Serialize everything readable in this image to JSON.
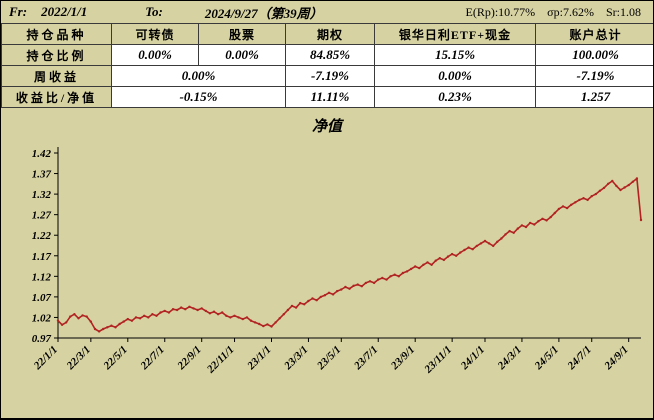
{
  "page": {
    "bg": "#d6d2a2"
  },
  "header_bar": {
    "fr_label": "Fr:",
    "fr_value": "2022/1/1",
    "to_label": "To:",
    "to_value": "2024/9/27（第39周）",
    "stats": [
      "E(Rp):10.77%",
      "σp:7.62%",
      "Sr:1.08"
    ]
  },
  "table": {
    "rows": [
      {
        "label": "持仓品种",
        "cells": [
          "可转债",
          "股票",
          "期权",
          "银华日利ETF+现金",
          "账户总计"
        ]
      },
      {
        "label": "持仓比例",
        "cells": [
          "0.00%",
          "0.00%",
          "84.85%",
          "15.15%",
          "100.00%"
        ]
      },
      {
        "label": "周收益",
        "merged": "0.00%",
        "cells": [
          "-7.19%",
          "0.00%",
          "-7.19%"
        ]
      },
      {
        "label": "收益比/净值",
        "merged": "-0.15%",
        "cells": [
          "11.11%",
          "0.23%",
          "1.257"
        ]
      }
    ]
  },
  "chart_data": {
    "type": "line",
    "title": "净值",
    "series_name": "净值",
    "x_unit": "week",
    "ylim": [
      0.97,
      1.42
    ],
    "grid": false,
    "legend": "none",
    "line_color": "#b22222",
    "y_ticks": [
      0.97,
      1.02,
      1.07,
      1.12,
      1.17,
      1.22,
      1.27,
      1.32,
      1.37,
      1.42
    ],
    "x_ticks": [
      {
        "label": "22/1/1",
        "i": 0
      },
      {
        "label": "22/3/1",
        "i": 8
      },
      {
        "label": "22/5/1",
        "i": 17
      },
      {
        "label": "22/7/1",
        "i": 26
      },
      {
        "label": "22/9/1",
        "i": 35
      },
      {
        "label": "22/11/1",
        "i": 43
      },
      {
        "label": "23/1/1",
        "i": 52
      },
      {
        "label": "23/3/1",
        "i": 61
      },
      {
        "label": "23/5/1",
        "i": 69
      },
      {
        "label": "23/7/1",
        "i": 78
      },
      {
        "label": "23/9/1",
        "i": 87
      },
      {
        "label": "23/11/1",
        "i": 96
      },
      {
        "label": "24/1/1",
        "i": 104
      },
      {
        "label": "24/3/1",
        "i": 113
      },
      {
        "label": "24/5/1",
        "i": 122
      },
      {
        "label": "24/7/1",
        "i": 130
      },
      {
        "label": "24/9/1",
        "i": 139
      }
    ],
    "values": [
      1.012,
      1.002,
      1.008,
      1.022,
      1.028,
      1.018,
      1.025,
      1.022,
      1.01,
      0.992,
      0.986,
      0.992,
      0.996,
      1.0,
      0.996,
      1.004,
      1.01,
      1.016,
      1.012,
      1.02,
      1.018,
      1.024,
      1.02,
      1.028,
      1.024,
      1.032,
      1.036,
      1.032,
      1.04,
      1.038,
      1.044,
      1.04,
      1.046,
      1.042,
      1.038,
      1.042,
      1.036,
      1.03,
      1.034,
      1.028,
      1.032,
      1.024,
      1.02,
      1.024,
      1.02,
      1.016,
      1.02,
      1.012,
      1.008,
      1.004,
      0.999,
      1.003,
      0.998,
      1.008,
      1.018,
      1.028,
      1.038,
      1.048,
      1.044,
      1.055,
      1.052,
      1.06,
      1.066,
      1.062,
      1.07,
      1.074,
      1.08,
      1.076,
      1.084,
      1.088,
      1.094,
      1.09,
      1.097,
      1.1,
      1.096,
      1.104,
      1.108,
      1.104,
      1.112,
      1.116,
      1.112,
      1.12,
      1.124,
      1.12,
      1.128,
      1.132,
      1.138,
      1.144,
      1.14,
      1.148,
      1.154,
      1.148,
      1.158,
      1.164,
      1.16,
      1.168,
      1.174,
      1.17,
      1.178,
      1.184,
      1.19,
      1.186,
      1.194,
      1.2,
      1.206,
      1.2,
      1.194,
      1.204,
      1.212,
      1.222,
      1.23,
      1.226,
      1.236,
      1.244,
      1.24,
      1.25,
      1.246,
      1.254,
      1.26,
      1.256,
      1.264,
      1.274,
      1.284,
      1.29,
      1.286,
      1.294,
      1.3,
      1.306,
      1.31,
      1.306,
      1.315,
      1.32,
      1.328,
      1.335,
      1.345,
      1.352,
      1.34,
      1.33,
      1.336,
      1.342,
      1.35,
      1.358,
      1.257
    ]
  }
}
